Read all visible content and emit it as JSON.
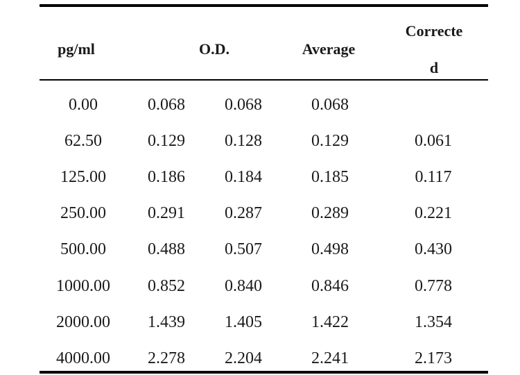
{
  "table": {
    "headers": {
      "concentration": "pg/ml",
      "od": "O.D.",
      "average": "Average",
      "corrected_line1": "Correcte",
      "corrected_line2": "d"
    },
    "columns": [
      "pg/ml",
      "O.D. (1)",
      "O.D. (2)",
      "Average",
      "Corrected"
    ],
    "rows": [
      [
        "0.00",
        "0.068",
        "0.068",
        "0.068",
        ""
      ],
      [
        "62.50",
        "0.129",
        "0.128",
        "0.129",
        "0.061"
      ],
      [
        "125.00",
        "0.186",
        "0.184",
        "0.185",
        "0.117"
      ],
      [
        "250.00",
        "0.291",
        "0.287",
        "0.289",
        "0.221"
      ],
      [
        "500.00",
        "0.488",
        "0.507",
        "0.498",
        "0.430"
      ],
      [
        "1000.00",
        "0.852",
        "0.840",
        "0.846",
        "0.778"
      ],
      [
        "2000.00",
        "1.439",
        "1.405",
        "1.422",
        "1.354"
      ],
      [
        "4000.00",
        "2.278",
        "2.204",
        "2.241",
        "2.173"
      ]
    ]
  }
}
